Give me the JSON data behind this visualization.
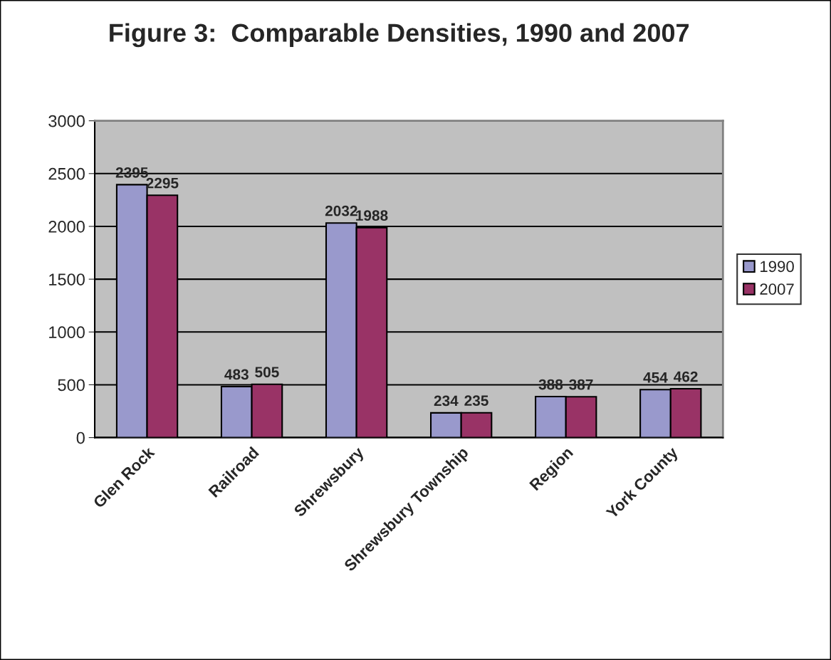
{
  "chart_data": {
    "type": "bar",
    "title": "Figure 3:  Comparable Densities, 1990 and 2007",
    "categories": [
      "Glen Rock",
      "Railroad",
      "Shrewsbury",
      "Shrewsbury Township",
      "Region",
      "York County"
    ],
    "series": [
      {
        "name": "1990",
        "color": "#9999cc",
        "values": [
          2395,
          483,
          2032,
          234,
          388,
          454
        ]
      },
      {
        "name": "2007",
        "color": "#993366",
        "values": [
          2295,
          505,
          1988,
          235,
          387,
          462
        ]
      }
    ],
    "ylim": [
      0,
      3000
    ],
    "yticks": [
      0,
      500,
      1000,
      1500,
      2000,
      2500,
      3000
    ],
    "grid": "y",
    "legend": "right",
    "data_labels": true
  }
}
